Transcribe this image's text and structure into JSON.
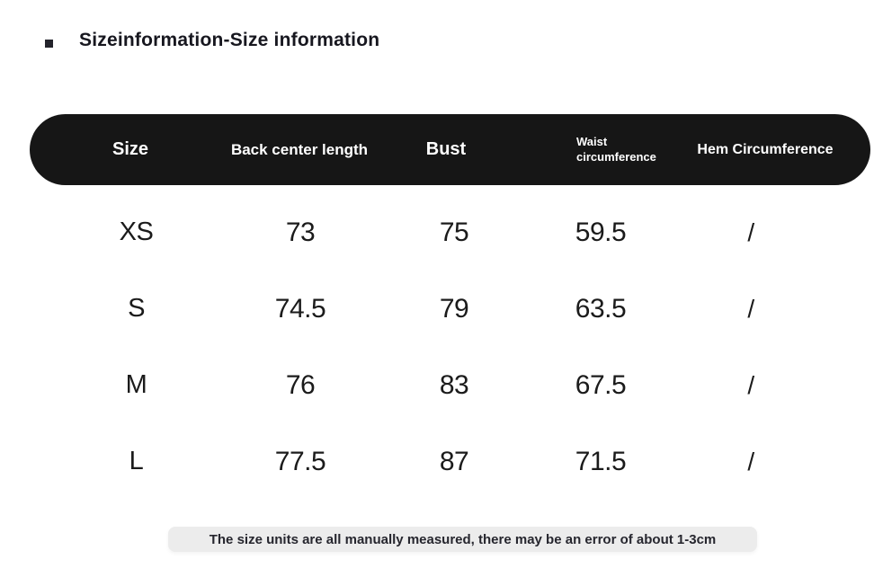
{
  "page": {
    "title": "Sizeinformation-Size information"
  },
  "table": {
    "columns": {
      "size": "Size",
      "back_center_length": "Back center length",
      "bust": "Bust",
      "waist_circumference": "Waist circumference",
      "hem_circumference": "Hem Circumference"
    },
    "rows": [
      {
        "size": "XS",
        "values": [
          "73",
          "75",
          "59.5",
          "/"
        ]
      },
      {
        "size": "S",
        "values": [
          "74.5",
          "79",
          "63.5",
          "/"
        ]
      },
      {
        "size": "M",
        "values": [
          "76",
          "83",
          "67.5",
          "/"
        ]
      },
      {
        "size": "L",
        "values": [
          "77.5",
          "87",
          "71.5",
          "/"
        ]
      }
    ]
  },
  "note": {
    "text": "The size units are all manually measured, there may be an error of about 1-3cm"
  },
  "colors": {
    "header_bg": "#161616",
    "header_text": "#ffffff",
    "body_text": "#1b1b1b",
    "note_bg": "#ececec",
    "page_bg": "#ffffff"
  },
  "chart_data": {
    "type": "table",
    "title": "Sizeinformation-Size information",
    "columns": [
      "Size",
      "Back center length",
      "Bust",
      "Waist circumference",
      "Hem Circumference"
    ],
    "rows": [
      [
        "XS",
        73,
        75,
        59.5,
        "/"
      ],
      [
        "S",
        74.5,
        79,
        63.5,
        "/"
      ],
      [
        "M",
        76,
        83,
        67.5,
        "/"
      ],
      [
        "L",
        77.5,
        87,
        71.5,
        "/"
      ]
    ],
    "footnote": "The size units are all manually measured, there may be an error of about 1-3cm"
  }
}
